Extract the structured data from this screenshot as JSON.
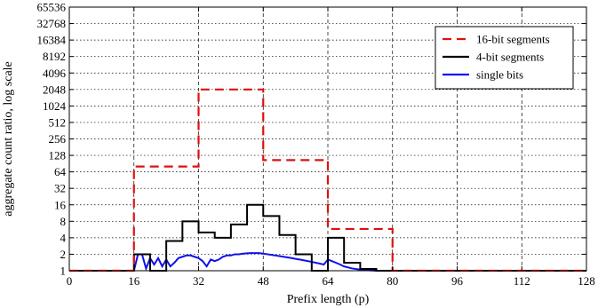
{
  "chart_data": {
    "type": "line",
    "xlabel": "Prefix length (p)",
    "ylabel": "aggregate count ratio, log scale",
    "xlim": [
      0,
      128
    ],
    "ylim": [
      1,
      65536
    ],
    "yscale": "log2",
    "grid": true,
    "legend_position": "top-right",
    "xticks": [
      "0",
      "16",
      "32",
      "48",
      "64",
      "80",
      "96",
      "112",
      "128"
    ],
    "yticks": [
      "1",
      "2",
      "4",
      "8",
      "16",
      "32",
      "64",
      "128",
      "256",
      "512",
      "1024",
      "2048",
      "4096",
      "8192",
      "16384",
      "32768",
      "65536"
    ],
    "series": [
      {
        "name": "16-bit segments",
        "color": "#e01010",
        "dash": "dashed",
        "step_x": [
          0,
          16,
          32,
          48,
          64,
          80,
          128
        ],
        "step_y": [
          1,
          80,
          2048,
          105,
          5.8,
          1
        ]
      },
      {
        "name": "4-bit segments",
        "color": "#000000",
        "dash": "solid",
        "step_x": [
          0,
          16,
          20,
          24,
          28,
          32,
          36,
          40,
          44,
          48,
          52,
          56,
          60,
          64,
          68,
          72,
          76,
          80,
          128
        ],
        "step_y": [
          1,
          2,
          1,
          3.5,
          8,
          5,
          4,
          7,
          16,
          10,
          4.5,
          2,
          1,
          4,
          1.4,
          1.08,
          1,
          1
        ]
      },
      {
        "name": "single bits",
        "color": "#1010ee",
        "dash": "solid",
        "points": [
          [
            0,
            1
          ],
          [
            15,
            1
          ],
          [
            16,
            1
          ],
          [
            17,
            2
          ],
          [
            18,
            2
          ],
          [
            19,
            1.1
          ],
          [
            20,
            1.7
          ],
          [
            21,
            1.3
          ],
          [
            22,
            1.7
          ],
          [
            23,
            1.2
          ],
          [
            24,
            1.6
          ],
          [
            25,
            1.2
          ],
          [
            26,
            1.4
          ],
          [
            27,
            1.7
          ],
          [
            28,
            1.8
          ],
          [
            29,
            1.9
          ],
          [
            30,
            1.9
          ],
          [
            31,
            1.8
          ],
          [
            32,
            1.7
          ],
          [
            33,
            1.5
          ],
          [
            34,
            1.2
          ],
          [
            35,
            1.6
          ],
          [
            36,
            1.5
          ],
          [
            37,
            1.6
          ],
          [
            38,
            1.8
          ],
          [
            39,
            1.9
          ],
          [
            40,
            1.9
          ],
          [
            41,
            2
          ],
          [
            42,
            2
          ],
          [
            43,
            2.05
          ],
          [
            44,
            2.08
          ],
          [
            45,
            2.1
          ],
          [
            46,
            2.1
          ],
          [
            47,
            2.1
          ],
          [
            48,
            2.05
          ],
          [
            49,
            2
          ],
          [
            50,
            1.95
          ],
          [
            51,
            1.9
          ],
          [
            52,
            1.85
          ],
          [
            53,
            1.8
          ],
          [
            54,
            1.75
          ],
          [
            55,
            1.7
          ],
          [
            56,
            1.65
          ],
          [
            57,
            1.6
          ],
          [
            58,
            1.55
          ],
          [
            59,
            1.5
          ],
          [
            60,
            1.45
          ],
          [
            61,
            1.4
          ],
          [
            62,
            1.35
          ],
          [
            63,
            1.3
          ],
          [
            64,
            1.6
          ],
          [
            65,
            1.5
          ],
          [
            66,
            1.4
          ],
          [
            67,
            1.3
          ],
          [
            68,
            1.2
          ],
          [
            70,
            1.1
          ],
          [
            72,
            1.05
          ],
          [
            74,
            1.02
          ],
          [
            76,
            1
          ],
          [
            128,
            1
          ]
        ]
      }
    ]
  }
}
